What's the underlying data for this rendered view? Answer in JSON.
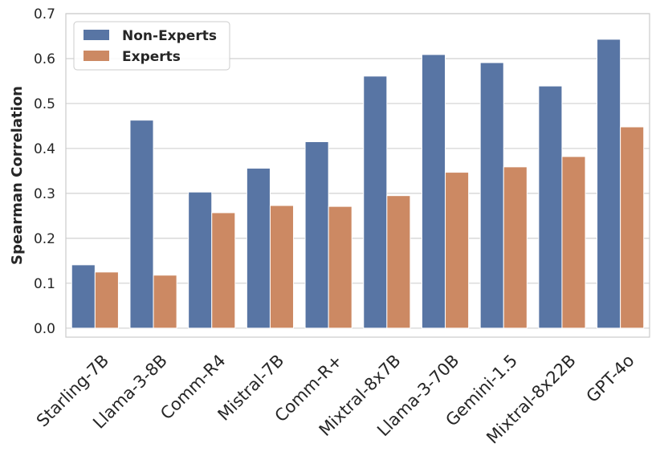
{
  "chart_data": {
    "type": "bar",
    "title": "",
    "xlabel": "",
    "ylabel": "Spearman Correlation",
    "ylim": [
      -0.02,
      0.7
    ],
    "yticks": [
      "0.0",
      "0.1",
      "0.2",
      "0.3",
      "0.4",
      "0.5",
      "0.6",
      "0.7"
    ],
    "ytick_values": [
      0.0,
      0.1,
      0.2,
      0.3,
      0.4,
      0.5,
      0.6,
      0.7
    ],
    "grid": true,
    "legend_position": "top-left",
    "categories": [
      "Starling-7B",
      "Llama-3-8B",
      "Comm-R4",
      "Mistral-7B",
      "Comm-R+",
      "Mixtral-8x7B",
      "Llama-3-70B",
      "Gemini-1.5",
      "Mixtral-8x22B",
      "GPT-4o"
    ],
    "series": [
      {
        "name": "Non-Experts",
        "color": "#5875a4",
        "values": [
          0.141,
          0.463,
          0.303,
          0.356,
          0.415,
          0.561,
          0.609,
          0.591,
          0.539,
          0.643
        ]
      },
      {
        "name": "Experts",
        "color": "#cc8963",
        "values": [
          0.125,
          0.118,
          0.257,
          0.273,
          0.271,
          0.295,
          0.347,
          0.359,
          0.382,
          0.448
        ]
      }
    ]
  }
}
